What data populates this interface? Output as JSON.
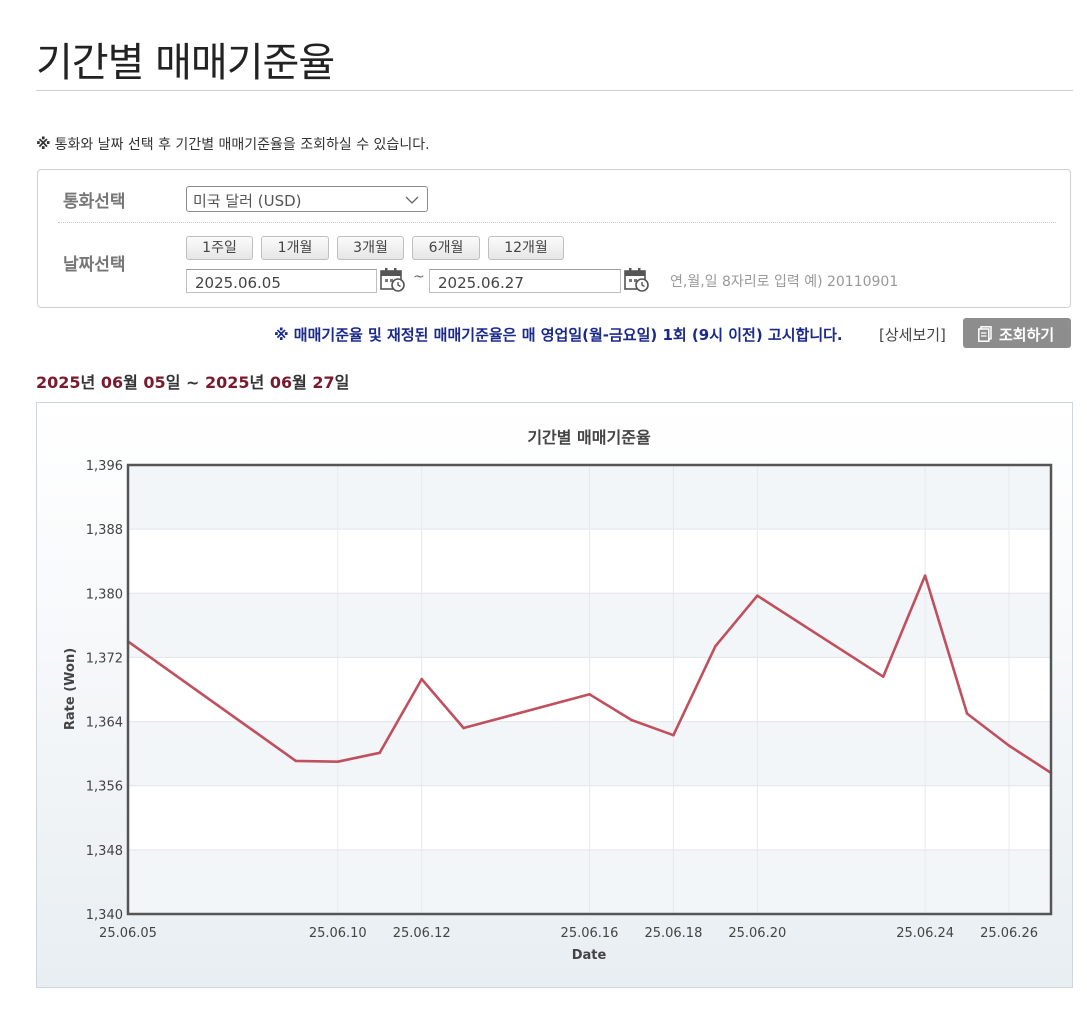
{
  "page": {
    "title": "기간별 매매기준율",
    "notice_mark": "※",
    "notice_text": "통화와 날짜 선택 후 기간별 매매기준율을 조회하실 수 있습니다."
  },
  "search": {
    "currency_label": "통화선택",
    "currency_selected": "미국 달러 (USD)",
    "date_label": "날짜선택",
    "period_buttons": [
      "1주일",
      "1개월",
      "3개월",
      "6개월",
      "12개월"
    ],
    "start_date": "2025.06.05",
    "end_date": "2025.06.27",
    "separator": "~",
    "date_hint": "연,월,일 8자리로 입력 예) 20110901"
  },
  "announcement": {
    "text": "※ 매매기준율 및 재정된 매매기준율은 매 영업일(월-금요일) 1회 (9시 이전) 고시합니다.",
    "detail_link": "[상세보기]",
    "search_button": "조회하기"
  },
  "range": {
    "start_year": "2025",
    "start_month": "06",
    "start_day": "05",
    "end_year": "2025",
    "end_month": "06",
    "end_day": "27",
    "year_suffix": "년",
    "month_suffix": "월",
    "day_suffix": "일",
    "separator": "~"
  },
  "colors": {
    "line": "#c0505e",
    "announce": "#1a2a8c",
    "range_number": "#7a1a2e"
  },
  "chart_data": {
    "type": "line",
    "title": "기간별 매매기준율",
    "xlabel": "Date",
    "ylabel": "Rate (Won)",
    "ylim": [
      1340,
      1396
    ],
    "yticks": [
      "1,340",
      "1,348",
      "1,356",
      "1,364",
      "1,372",
      "1,380",
      "1,388",
      "1,396"
    ],
    "xticks": [
      "25.06.05",
      "25.06.10",
      "25.06.12",
      "25.06.16",
      "25.06.18",
      "25.06.20",
      "25.06.24",
      "25.06.26"
    ],
    "grid": true,
    "x": [
      "25.06.05",
      "25.06.09",
      "25.06.10",
      "25.06.11",
      "25.06.12",
      "25.06.13",
      "25.06.16",
      "25.06.17",
      "25.06.18",
      "25.06.19",
      "25.06.20",
      "25.06.23",
      "25.06.24",
      "25.06.25",
      "25.06.26",
      "25.06.27"
    ],
    "series": [
      {
        "values": [
          1374.0,
          1359.1,
          1359.0,
          1360.1,
          1369.3,
          1363.2,
          1367.4,
          1364.2,
          1362.3,
          1373.4,
          1379.7,
          1369.6,
          1382.2,
          1365.0,
          1361.0,
          1357.6
        ]
      }
    ]
  }
}
